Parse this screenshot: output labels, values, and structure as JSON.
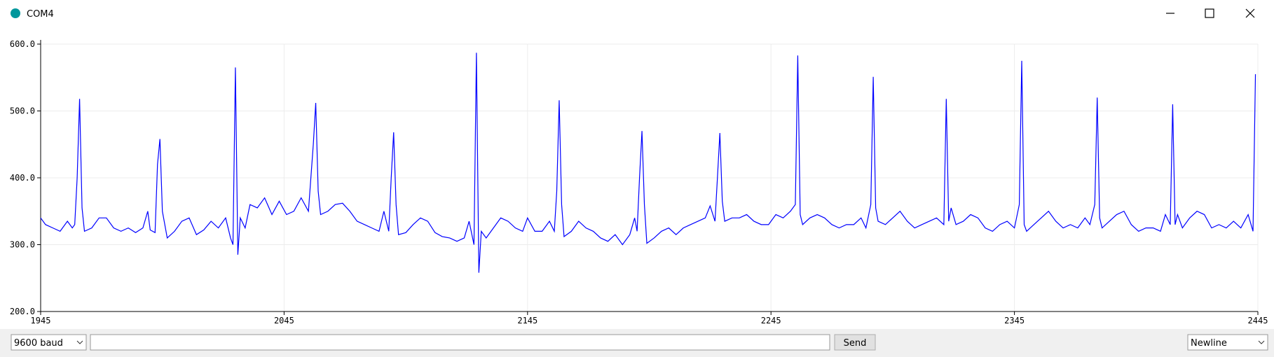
{
  "window": {
    "title": "COM4"
  },
  "controls": {
    "baud": "9600 baud",
    "send": "Send",
    "line_ending": "Newline"
  },
  "chart_data": {
    "type": "line",
    "xlim": [
      1945,
      2445
    ],
    "xticks": [
      1945,
      2045,
      2145,
      2245,
      2345,
      2445
    ],
    "ylim": [
      200,
      600
    ],
    "yticks": [
      {
        "value": 200,
        "label": "200.0"
      },
      {
        "value": 300,
        "label": "300.0"
      },
      {
        "value": 400,
        "label": "400.0"
      },
      {
        "value": 500,
        "label": "500.0"
      },
      {
        "value": 600,
        "label": "600.0"
      }
    ],
    "grid": true,
    "series": [
      {
        "color": "#0000ff",
        "x": [
          1945,
          1947,
          1950,
          1953,
          1956,
          1958,
          1959,
          1960,
          1961,
          1962,
          1963,
          1966,
          1969,
          1972,
          1975,
          1978,
          1981,
          1984,
          1987,
          1989,
          1990,
          1992,
          1993,
          1994,
          1995,
          1997,
          2000,
          2003,
          2006,
          2009,
          2012,
          2015,
          2018,
          2021,
          2023,
          2024,
          2025,
          2026,
          2027,
          2029,
          2031,
          2034,
          2037,
          2040,
          2043,
          2046,
          2049,
          2052,
          2055,
          2057,
          2058,
          2059,
          2060,
          2063,
          2066,
          2069,
          2072,
          2075,
          2078,
          2081,
          2084,
          2086,
          2088,
          2089,
          2090,
          2091,
          2092,
          2095,
          2098,
          2101,
          2104,
          2107,
          2110,
          2113,
          2116,
          2119,
          2121,
          2123,
          2124,
          2125,
          2126,
          2128,
          2131,
          2134,
          2137,
          2140,
          2143,
          2145,
          2148,
          2151,
          2154,
          2156,
          2157,
          2158,
          2159,
          2160,
          2163,
          2166,
          2169,
          2172,
          2175,
          2178,
          2181,
          2184,
          2187,
          2189,
          2190,
          2191,
          2192,
          2193,
          2194,
          2197,
          2200,
          2203,
          2206,
          2209,
          2212,
          2215,
          2218,
          2220,
          2222,
          2223,
          2224,
          2225,
          2226,
          2229,
          2232,
          2235,
          2238,
          2241,
          2244,
          2247,
          2250,
          2253,
          2255,
          2256,
          2257,
          2258,
          2261,
          2264,
          2267,
          2270,
          2273,
          2276,
          2279,
          2282,
          2284,
          2286,
          2287,
          2288,
          2289,
          2292,
          2295,
          2298,
          2301,
          2304,
          2307,
          2310,
          2313,
          2316,
          2317,
          2318,
          2319,
          2321,
          2324,
          2327,
          2330,
          2333,
          2336,
          2339,
          2342,
          2345,
          2347,
          2348,
          2349,
          2350,
          2353,
          2356,
          2359,
          2362,
          2365,
          2368,
          2371,
          2374,
          2376,
          2378,
          2379,
          2380,
          2381,
          2384,
          2387,
          2390,
          2393,
          2396,
          2399,
          2402,
          2405,
          2407,
          2409,
          2410,
          2411,
          2412,
          2414,
          2417,
          2420,
          2423,
          2426,
          2429,
          2432,
          2435,
          2438,
          2441,
          2443,
          2444
        ],
        "values": [
          340,
          330,
          325,
          320,
          335,
          325,
          330,
          400,
          518,
          355,
          320,
          325,
          340,
          340,
          325,
          320,
          325,
          318,
          325,
          350,
          322,
          318,
          420,
          458,
          350,
          310,
          320,
          335,
          340,
          315,
          322,
          335,
          325,
          340,
          310,
          300,
          565,
          285,
          340,
          325,
          360,
          355,
          370,
          345,
          365,
          345,
          350,
          370,
          350,
          450,
          512,
          380,
          345,
          350,
          360,
          362,
          350,
          335,
          330,
          325,
          320,
          350,
          320,
          400,
          468,
          360,
          315,
          318,
          330,
          340,
          335,
          318,
          312,
          310,
          305,
          310,
          335,
          300,
          587,
          258,
          320,
          310,
          325,
          340,
          335,
          325,
          320,
          340,
          320,
          320,
          335,
          320,
          380,
          516,
          360,
          312,
          320,
          335,
          325,
          320,
          310,
          305,
          315,
          300,
          315,
          340,
          320,
          400,
          470,
          360,
          302,
          310,
          320,
          325,
          315,
          325,
          330,
          335,
          340,
          358,
          335,
          400,
          467,
          365,
          335,
          340,
          340,
          345,
          335,
          330,
          330,
          345,
          340,
          350,
          360,
          583,
          345,
          330,
          340,
          345,
          340,
          330,
          325,
          330,
          330,
          340,
          325,
          360,
          551,
          355,
          335,
          330,
          340,
          350,
          335,
          325,
          330,
          335,
          340,
          330,
          518,
          335,
          355,
          330,
          335,
          345,
          340,
          325,
          320,
          330,
          335,
          325,
          360,
          575,
          330,
          320,
          330,
          340,
          350,
          335,
          325,
          330,
          325,
          340,
          330,
          360,
          520,
          340,
          325,
          335,
          345,
          350,
          330,
          320,
          325,
          325,
          320,
          345,
          330,
          510,
          330,
          345,
          325,
          340,
          350,
          345,
          325,
          330,
          325,
          335,
          325,
          345,
          320,
          555
        ]
      }
    ]
  }
}
